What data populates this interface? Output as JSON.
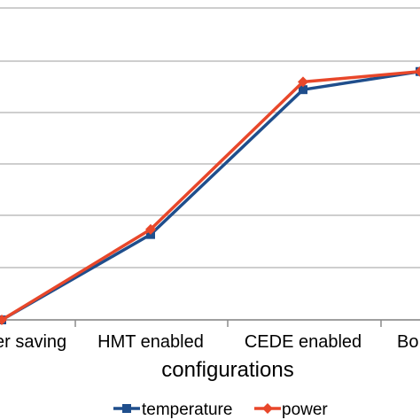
{
  "chart_data": {
    "type": "line",
    "categories": [
      "Power saving",
      "HMT enabled",
      "CEDE enabled",
      "Both enabled"
    ],
    "visible_category_labels": [
      "er saving",
      "HMT enabled",
      "CEDE enabled",
      "Bo"
    ],
    "xlabel": "configurations",
    "ylabel": "",
    "title": "",
    "grid": true,
    "legend": "bottom",
    "ylim": [
      0,
      6.2
    ],
    "series": [
      {
        "name": "temperature",
        "values": [
          0,
          1.65,
          4.45,
          4.8
        ],
        "color": "#1f4e8c",
        "marker": "square"
      },
      {
        "name": "power",
        "values": [
          0,
          1.75,
          4.6,
          4.8
        ],
        "color": "#e8472a",
        "marker": "diamond"
      }
    ]
  }
}
